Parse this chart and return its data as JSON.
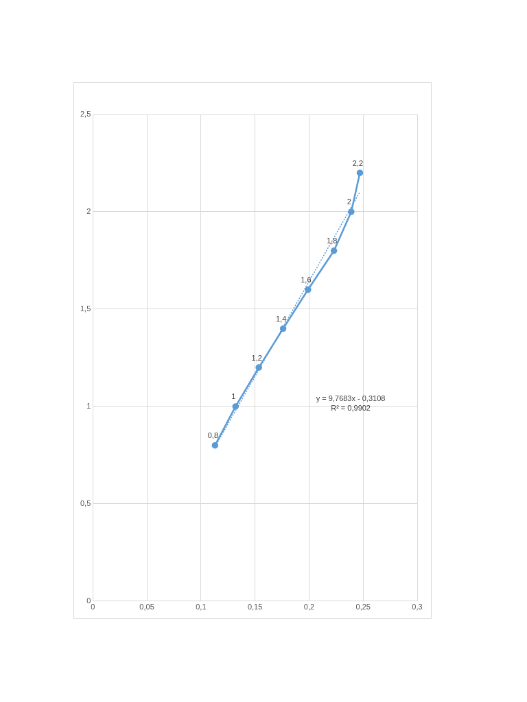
{
  "chart_data": {
    "type": "line",
    "x": [
      0.113,
      0.132,
      0.1535,
      0.176,
      0.199,
      0.223,
      0.239,
      0.247
    ],
    "series": [
      {
        "type": "line",
        "color": "#5b9bd5",
        "marker": "circle",
        "line_style": "solid",
        "values": [
          0.8,
          1,
          1.2,
          1.4,
          1.6,
          1.8,
          2,
          2.2
        ],
        "value_labels": [
          "0,8",
          "1",
          "1,2",
          "1,4",
          "1,6",
          "1,8",
          "2",
          "2,2"
        ]
      },
      {
        "type": "line",
        "color": "#5b9bd5",
        "marker": "none",
        "line_style": "dotted",
        "x": [
          0.113,
          0.247
        ],
        "values": [
          0.793,
          2.102
        ]
      }
    ],
    "xlim": [
      0,
      0.3
    ],
    "xticks": [
      0,
      {
        "value": 0.05,
        "label": "0,05"
      },
      {
        "value": 0.1,
        "label": "0,1"
      },
      {
        "value": 0.15,
        "label": "0,15"
      },
      {
        "value": 0.2,
        "label": "0,2"
      },
      {
        "value": 0.25,
        "label": "0,25"
      },
      {
        "value": 0.3,
        "label": "0,3"
      }
    ],
    "ylim": [
      0,
      2.5
    ],
    "yticks": [
      0,
      {
        "value": 0.5,
        "label": "0,5"
      },
      1,
      {
        "value": 1.5,
        "label": "1,5"
      },
      2,
      {
        "value": 2.5,
        "label": "2,5"
      }
    ],
    "grid": true,
    "legend": false,
    "annotations": [
      "y = 9,7683x - 0,3108\nR² = 0,9902"
    ]
  }
}
